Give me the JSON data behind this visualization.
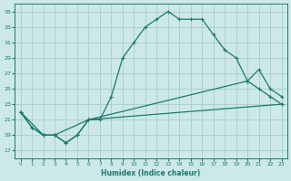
{
  "xlabel": "Humidex (Indice chaleur)",
  "bg_color": "#cce8e8",
  "line_color": "#1a7a6e",
  "grid_color": "#aacccc",
  "xlim": [
    -0.5,
    23.5
  ],
  "ylim": [
    16.0,
    36.0
  ],
  "xticks": [
    0,
    1,
    2,
    3,
    4,
    5,
    6,
    7,
    8,
    9,
    10,
    11,
    12,
    13,
    14,
    15,
    16,
    17,
    18,
    19,
    20,
    21,
    22,
    23
  ],
  "yticks": [
    17,
    19,
    21,
    23,
    25,
    27,
    29,
    31,
    33,
    35
  ],
  "line1_x": [
    0,
    1,
    2,
    3,
    4,
    5,
    6,
    7,
    8,
    9,
    10,
    11,
    12,
    13,
    14,
    15,
    16,
    17,
    18,
    19,
    20,
    21,
    22,
    23
  ],
  "line1_y": [
    22,
    20,
    19,
    19,
    18,
    19,
    21,
    21,
    24,
    29,
    31,
    33,
    34,
    35,
    34,
    34,
    34,
    32,
    30,
    29,
    26,
    25,
    24,
    23
  ],
  "line2_x": [
    0,
    1,
    2,
    3,
    4,
    5,
    6,
    20,
    21,
    22,
    23
  ],
  "line2_y": [
    22,
    20,
    19,
    19,
    18,
    19,
    21,
    26,
    27.5,
    25,
    24
  ],
  "line3_x": [
    0,
    2,
    3,
    6,
    23
  ],
  "line3_y": [
    22,
    19,
    19,
    21,
    23
  ]
}
